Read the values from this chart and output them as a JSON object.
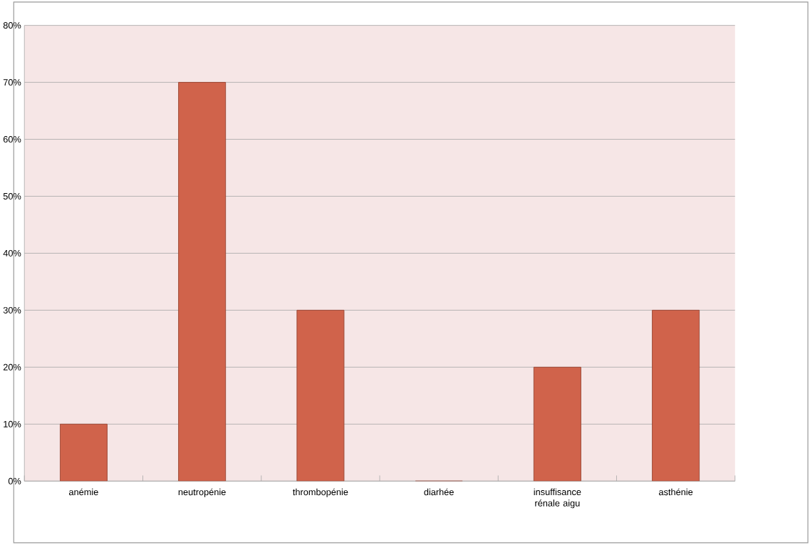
{
  "chart_data": {
    "type": "bar",
    "categories": [
      "anémie",
      "neutropénie",
      "thrombopénie",
      "diarhée",
      "insuffisance rénale aigu",
      "asthénie"
    ],
    "values": [
      10,
      70,
      30,
      0,
      20,
      30
    ],
    "color": "#d0634b",
    "ylim": [
      0,
      80
    ],
    "yticks": [
      {
        "value": 0,
        "label": "0%"
      },
      {
        "value": 10,
        "label": "10%"
      },
      {
        "value": 20,
        "label": "20%"
      },
      {
        "value": 30,
        "label": "30%"
      },
      {
        "value": 40,
        "label": "40%"
      },
      {
        "value": 50,
        "label": "50%"
      },
      {
        "value": 60,
        "label": "60%"
      },
      {
        "value": 70,
        "label": "70%"
      },
      {
        "value": 80,
        "label": "80%"
      }
    ],
    "grid": "y"
  }
}
